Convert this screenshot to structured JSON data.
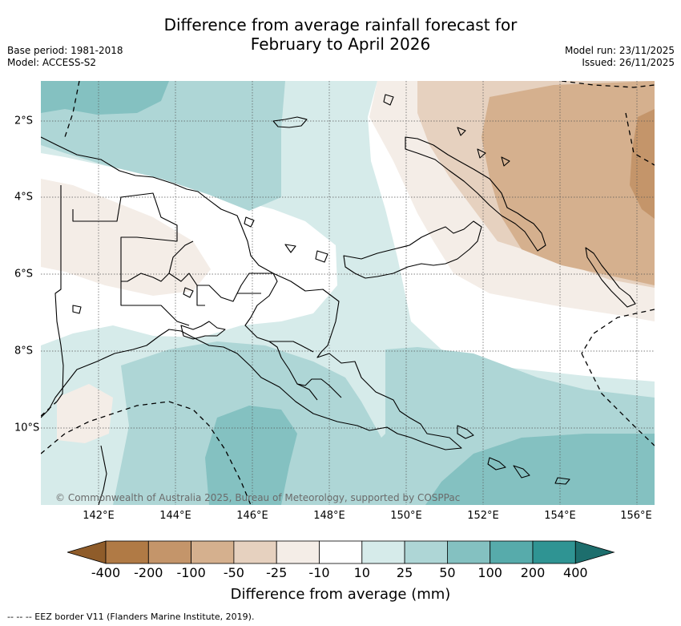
{
  "title": {
    "line1": "Difference from average rainfall forecast for",
    "line2": "February to April 2026"
  },
  "meta": {
    "base_period": "Base period: 1981-2018",
    "model": "Model: ACCESS-S2",
    "model_run": "Model run: 23/11/2025",
    "issued": "Issued: 26/11/2025"
  },
  "map": {
    "lon_labels": [
      "142°E",
      "144°E",
      "146°E",
      "148°E",
      "150°E",
      "152°E",
      "154°E",
      "156°E"
    ],
    "lat_labels": [
      "2°S",
      "4°S",
      "6°S",
      "8°S",
      "10°S"
    ],
    "copyright": "© Commonwealth of Australia 2025, Bureau of Meteorology, supported by COSPPac",
    "colors": {
      "land_outline": "#000000",
      "eez_border": "#000000",
      "gridline": "#555555"
    }
  },
  "colorbar": {
    "ticks": [
      "-400",
      "-200",
      "-100",
      "-50",
      "-25",
      "-10",
      "10",
      "25",
      "50",
      "100",
      "200",
      "400"
    ],
    "colors": [
      "#8f5c2a",
      "#b07a45",
      "#c4956a",
      "#d5b08e",
      "#e6d1bf",
      "#f4ede7",
      "#ffffff",
      "#d6ebea",
      "#aed6d6",
      "#84c1c1",
      "#57abab",
      "#2f9493",
      "#1d6e6d"
    ],
    "label": "Difference from average (mm)"
  },
  "footer": "--  --  -- EEZ border V11 (Flanders Marine Institute, 2019)."
}
